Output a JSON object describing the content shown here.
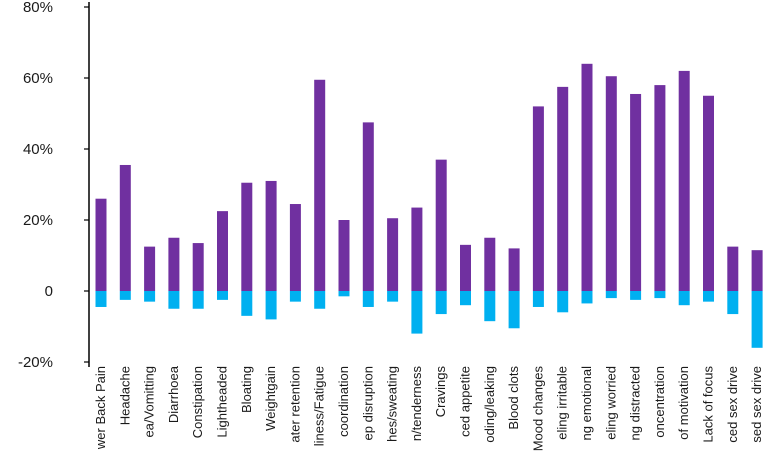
{
  "chart_data": {
    "type": "bar",
    "stacked": "diverging",
    "ylim": [
      -0.2,
      0.8
    ],
    "yticks": [
      "-20%",
      "0",
      "20%",
      "40%",
      "60%",
      "80%"
    ],
    "ytick_values": [
      -0.2,
      0,
      0.2,
      0.4,
      0.6,
      0.8
    ],
    "grid": false,
    "legend": "none",
    "categories": [
      "wer Back Pain",
      "Headache",
      "ea/Vomitting",
      "Diarrhoea",
      "Constipation",
      "Lightheaded",
      "Bloating",
      "Weightgain",
      "ater retention",
      "liness/Fatigue",
      "coordination",
      "ep disruption",
      "hes/sweating",
      "n/tenderness",
      "Cravings",
      "ced appetite",
      "oding/leaking",
      "Blood clots",
      "Mood changes",
      "eling irritable",
      "ng emotional",
      "eling worried",
      "ng distracted",
      "oncentration",
      "of motivation",
      "Lack of focus",
      "ced sex drive",
      "sed sex drive"
    ],
    "series": [
      {
        "color": "#7030a0",
        "values": [
          0.26,
          0.355,
          0.125,
          0.15,
          0.135,
          0.225,
          0.305,
          0.31,
          0.245,
          0.595,
          0.2,
          0.475,
          0.205,
          0.235,
          0.37,
          0.13,
          0.15,
          0.12,
          0.52,
          0.575,
          0.64,
          0.605,
          0.555,
          0.58,
          0.62,
          0.55,
          0.125,
          0.115
        ]
      },
      {
        "color": "#00b0f0",
        "values": [
          -0.045,
          -0.025,
          -0.03,
          -0.05,
          -0.05,
          -0.025,
          -0.07,
          -0.08,
          -0.03,
          -0.05,
          -0.015,
          -0.045,
          -0.03,
          -0.12,
          -0.065,
          -0.04,
          -0.085,
          -0.105,
          -0.045,
          -0.06,
          -0.035,
          -0.02,
          -0.025,
          -0.02,
          -0.04,
          -0.03,
          -0.065,
          -0.16
        ]
      }
    ]
  }
}
